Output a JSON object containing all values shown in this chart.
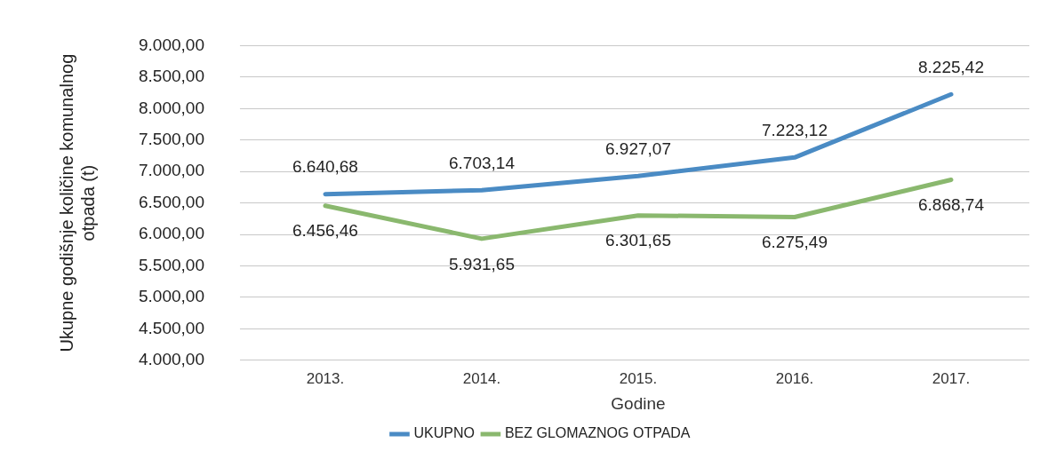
{
  "chart_data": {
    "type": "line",
    "xlabel": "Godine",
    "ylabel": "Ukupne godišnje količine komunalnog otpada (t)",
    "categories": [
      "2013.",
      "2014.",
      "2015.",
      "2016.",
      "2017."
    ],
    "series": [
      {
        "name": "UKUPNO",
        "color": "#4a8bc4",
        "values": [
          6640.68,
          6703.14,
          6927.07,
          7223.12,
          8225.42
        ],
        "value_labels": [
          "6.640,68",
          "6.703,14",
          "6.927,07",
          "7.223,12",
          "8.225,42"
        ]
      },
      {
        "name": "BEZ GLOMAZNOG OTPADA",
        "color": "#8ab86e",
        "values": [
          6456.46,
          5931.65,
          6301.65,
          6275.49,
          6868.74
        ],
        "value_labels": [
          "6.456,46",
          "5.931,65",
          "6.301,65",
          "6.275,49",
          "6.868,74"
        ]
      }
    ],
    "ylim": [
      4000,
      9000
    ],
    "yticks": [
      {
        "value": 4000,
        "label": "4.000,00"
      },
      {
        "value": 4500,
        "label": "4.500,00"
      },
      {
        "value": 5000,
        "label": "5.000,00"
      },
      {
        "value": 5500,
        "label": "5.500,00"
      },
      {
        "value": 6000,
        "label": "6.000,00"
      },
      {
        "value": 6500,
        "label": "6.500,00"
      },
      {
        "value": 7000,
        "label": "7.000,00"
      },
      {
        "value": 7500,
        "label": "7.500,00"
      },
      {
        "value": 8000,
        "label": "8.000,00"
      },
      {
        "value": 8500,
        "label": "8.500,00"
      },
      {
        "value": 9000,
        "label": "9.000,00"
      }
    ],
    "grid": "y",
    "legend": "bottom",
    "marker": "none",
    "line_style": "solid"
  }
}
